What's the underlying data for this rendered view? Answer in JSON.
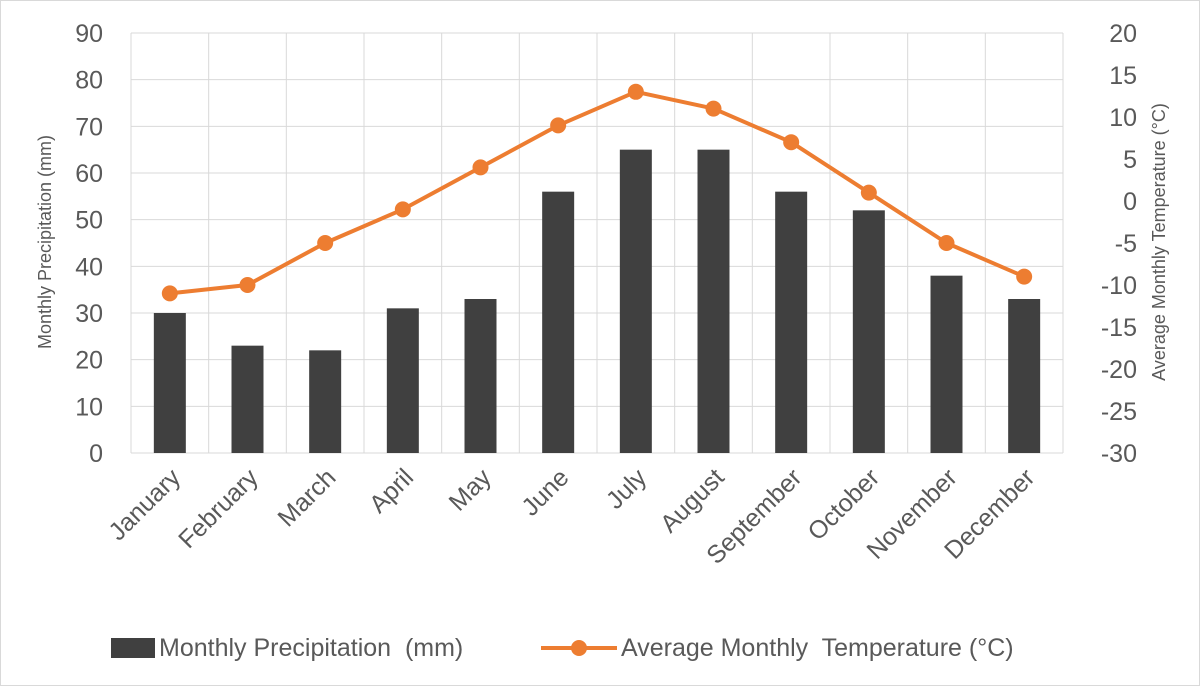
{
  "chart_data": {
    "type": "bar+line",
    "categories": [
      "January",
      "February",
      "March",
      "April",
      "May",
      "June",
      "July",
      "August",
      "September",
      "October",
      "November",
      "December"
    ],
    "series": [
      {
        "name": "Monthly Precipitation  (mm)",
        "type": "bar",
        "axis": "left",
        "values": [
          30,
          23,
          22,
          31,
          33,
          56,
          65,
          65,
          56,
          52,
          38,
          33
        ],
        "color": "#404040"
      },
      {
        "name": "Average Monthly  Temperature (°C)",
        "type": "line",
        "axis": "right",
        "values": [
          -11,
          -10,
          -5,
          -1,
          4,
          9,
          13,
          11,
          7,
          1,
          -5,
          -9
        ],
        "color": "#ED7D31"
      }
    ],
    "ylabel": "Monthly Precipitation  (mm)",
    "y2label": "Average Monthly  Temperature (°C)",
    "ylim": [
      0,
      90
    ],
    "y2lim": [
      -30,
      20
    ],
    "yticks": [
      "0",
      "10",
      "20",
      "30",
      "40",
      "50",
      "60",
      "70",
      "80",
      "90"
    ],
    "y2ticks": [
      "-30",
      "-25",
      "-20",
      "-15",
      "-10",
      "-5",
      "0",
      "5",
      "10",
      "15",
      "20"
    ],
    "grid": true,
    "legend": "bottom",
    "legend_labels": [
      "Monthly Precipitation  (mm)",
      "Average Monthly  Temperature (°C)"
    ]
  }
}
